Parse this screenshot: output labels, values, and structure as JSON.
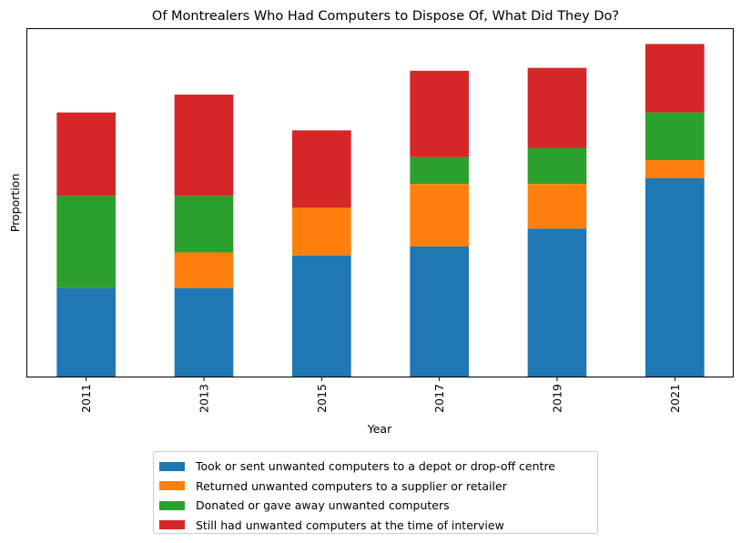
{
  "chart_data": {
    "type": "bar",
    "stacked": true,
    "title": "Of Montrealers Who Had Computers to Dispose Of, What Did They Do?",
    "xlabel": "Year",
    "ylabel": "Proportion",
    "categories": [
      "2011",
      "2013",
      "2015",
      "2017",
      "2019",
      "2021"
    ],
    "series": [
      {
        "name": "Took or sent unwanted computers to a depot or drop-off centre",
        "color": "#1f77b4",
        "values": [
          0.3,
          0.3,
          0.41,
          0.44,
          0.5,
          0.67
        ]
      },
      {
        "name": "Returned unwanted computers to a supplier or retailer",
        "color": "#ff7f0e",
        "values": [
          0.0,
          0.12,
          0.16,
          0.21,
          0.15,
          0.06
        ]
      },
      {
        "name": "Donated or gave away unwanted computers",
        "color": "#2ca02c",
        "values": [
          0.31,
          0.19,
          0.0,
          0.09,
          0.12,
          0.16
        ]
      },
      {
        "name": "Still had unwanted computers at the time of interview",
        "color": "#d62728",
        "values": [
          0.28,
          0.34,
          0.26,
          0.29,
          0.27,
          0.23
        ]
      }
    ],
    "ylim": [
      0,
      1.17
    ],
    "yticks_visible": false,
    "grid": false,
    "legend": "below"
  }
}
